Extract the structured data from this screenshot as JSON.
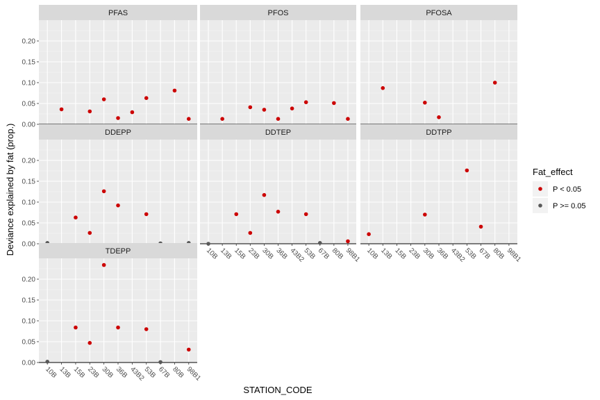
{
  "chart_data": {
    "type": "scatter",
    "facet_layout": "wrap-3-columns",
    "xlabel": "STATION_CODE",
    "ylabel": "Deviance explained by fat (prop.)",
    "ylim": [
      0,
      0.25
    ],
    "yticks": [
      "0.00",
      "0.05",
      "0.10",
      "0.15",
      "0.20"
    ],
    "ytick_values": [
      0,
      0.05,
      0.1,
      0.15,
      0.2
    ],
    "categories": [
      "10B",
      "13B",
      "15B",
      "23B",
      "30B",
      "36B",
      "43B2",
      "53B",
      "67B",
      "80B",
      "98B1"
    ],
    "hline_y": 0,
    "grid": true,
    "legend": {
      "title": "Fat_effect",
      "position": "right",
      "items": [
        {
          "label": "P < 0.05",
          "color": "#cc0000"
        },
        {
          "label": "P >= 0.05",
          "color": "#595959"
        }
      ]
    },
    "panels": [
      {
        "title": "PFAS",
        "points": [
          {
            "x": "13B",
            "y": 0.036,
            "sig": true
          },
          {
            "x": "23B",
            "y": 0.031,
            "sig": true
          },
          {
            "x": "30B",
            "y": 0.06,
            "sig": true
          },
          {
            "x": "36B",
            "y": 0.015,
            "sig": true
          },
          {
            "x": "43B2",
            "y": 0.029,
            "sig": true
          },
          {
            "x": "53B",
            "y": 0.063,
            "sig": true
          },
          {
            "x": "80B",
            "y": 0.081,
            "sig": true
          },
          {
            "x": "98B1",
            "y": 0.013,
            "sig": true
          }
        ]
      },
      {
        "title": "PFOS",
        "points": [
          {
            "x": "13B",
            "y": 0.013,
            "sig": true
          },
          {
            "x": "23B",
            "y": 0.041,
            "sig": true
          },
          {
            "x": "30B",
            "y": 0.035,
            "sig": true
          },
          {
            "x": "36B",
            "y": 0.013,
            "sig": true
          },
          {
            "x": "43B2",
            "y": 0.038,
            "sig": true
          },
          {
            "x": "53B",
            "y": 0.053,
            "sig": true
          },
          {
            "x": "80B",
            "y": 0.051,
            "sig": true
          },
          {
            "x": "98B1",
            "y": 0.013,
            "sig": true
          }
        ]
      },
      {
        "title": "PFOSA",
        "points": [
          {
            "x": "13B",
            "y": 0.087,
            "sig": true
          },
          {
            "x": "30B",
            "y": 0.052,
            "sig": true
          },
          {
            "x": "36B",
            "y": 0.017,
            "sig": true
          },
          {
            "x": "80B",
            "y": 0.1,
            "sig": true
          }
        ]
      },
      {
        "title": "DDEPP",
        "points": [
          {
            "x": "10B",
            "y": 0.002,
            "sig": false
          },
          {
            "x": "15B",
            "y": 0.063,
            "sig": true
          },
          {
            "x": "23B",
            "y": 0.026,
            "sig": true
          },
          {
            "x": "30B",
            "y": 0.126,
            "sig": true
          },
          {
            "x": "36B",
            "y": 0.092,
            "sig": true
          },
          {
            "x": "53B",
            "y": 0.071,
            "sig": true
          },
          {
            "x": "67B",
            "y": 0.001,
            "sig": false
          },
          {
            "x": "98B1",
            "y": 0.002,
            "sig": false
          }
        ]
      },
      {
        "title": "DDTEP",
        "points": [
          {
            "x": "10B",
            "y": 0.0,
            "sig": false
          },
          {
            "x": "15B",
            "y": 0.071,
            "sig": true
          },
          {
            "x": "23B",
            "y": 0.026,
            "sig": true
          },
          {
            "x": "30B",
            "y": 0.117,
            "sig": true
          },
          {
            "x": "36B",
            "y": 0.077,
            "sig": true
          },
          {
            "x": "53B",
            "y": 0.071,
            "sig": true
          },
          {
            "x": "67B",
            "y": 0.002,
            "sig": false
          },
          {
            "x": "98B1",
            "y": 0.006,
            "sig": true
          }
        ]
      },
      {
        "title": "DDTPP",
        "points": [
          {
            "x": "10B",
            "y": 0.023,
            "sig": true
          },
          {
            "x": "30B",
            "y": 0.07,
            "sig": true
          },
          {
            "x": "53B",
            "y": 0.176,
            "sig": true
          },
          {
            "x": "67B",
            "y": 0.041,
            "sig": true
          }
        ]
      },
      {
        "title": "TDEPP",
        "points": [
          {
            "x": "10B",
            "y": 0.002,
            "sig": false
          },
          {
            "x": "15B",
            "y": 0.084,
            "sig": true
          },
          {
            "x": "23B",
            "y": 0.047,
            "sig": true
          },
          {
            "x": "30B",
            "y": 0.234,
            "sig": true
          },
          {
            "x": "36B",
            "y": 0.084,
            "sig": true
          },
          {
            "x": "53B",
            "y": 0.08,
            "sig": true
          },
          {
            "x": "67B",
            "y": 0.001,
            "sig": false
          },
          {
            "x": "98B1",
            "y": 0.031,
            "sig": true
          }
        ]
      }
    ]
  }
}
